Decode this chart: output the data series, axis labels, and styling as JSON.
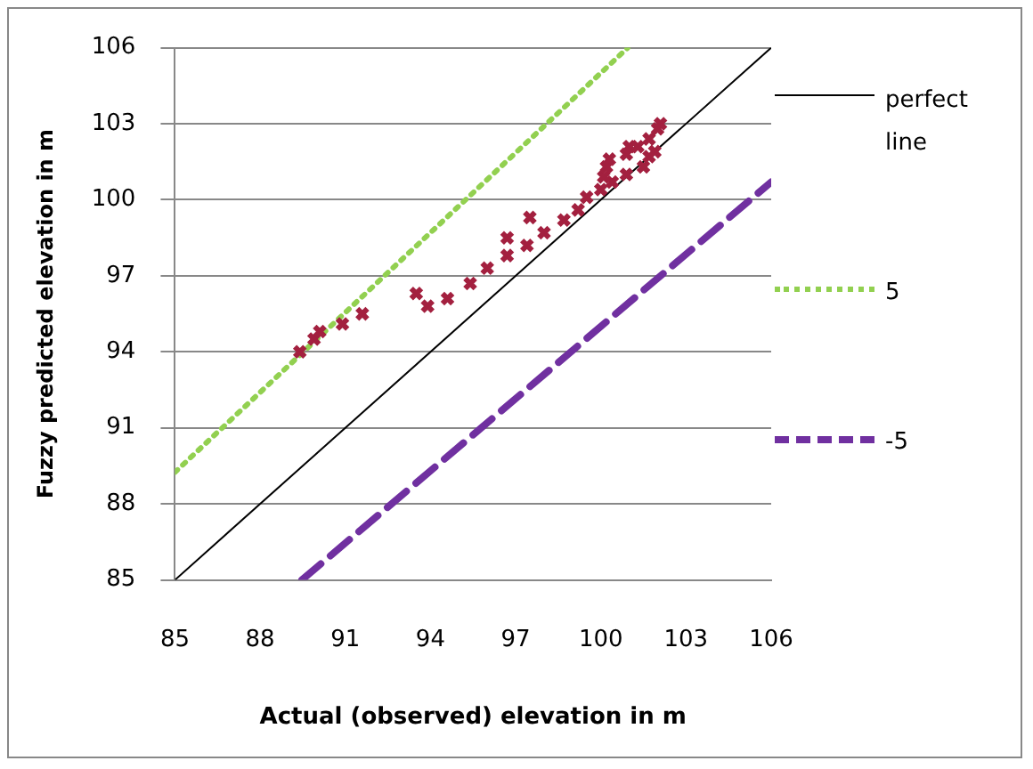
{
  "chart_data": {
    "type": "scatter",
    "xlabel": "Actual (observed) elevation in m",
    "ylabel": "Fuzzy predicted elevation in m",
    "xlim": [
      85,
      106
    ],
    "xticks": [
      85,
      88,
      91,
      94,
      97,
      100,
      103,
      106
    ],
    "ylim": [
      85,
      106
    ],
    "yticks": [
      85,
      88,
      91,
      94,
      97,
      100,
      103,
      106
    ],
    "grid": "y",
    "legend": "right",
    "series": [
      {
        "type": "scatter",
        "color": "#a3203f",
        "marker": "cross",
        "x": [
          89.4,
          89.9,
          90.1,
          90.9,
          91.6,
          93.5,
          93.9,
          94.6,
          95.4,
          96.0,
          96.7,
          96.7,
          97.4,
          97.5,
          98.0,
          98.7,
          99.2,
          99.5,
          100.0,
          100.4,
          100.1,
          100.2,
          100.3,
          100.9,
          101.5,
          100.9,
          101.0,
          101.3,
          101.7,
          101.9,
          101.7,
          102.0,
          102.1
        ],
        "values": [
          94.0,
          94.5,
          94.8,
          95.1,
          95.5,
          96.3,
          95.8,
          96.1,
          96.7,
          97.3,
          97.8,
          98.5,
          98.2,
          99.3,
          98.7,
          99.2,
          99.6,
          100.1,
          100.4,
          100.7,
          100.9,
          101.3,
          101.6,
          101.0,
          101.3,
          101.8,
          102.1,
          102.1,
          101.7,
          101.9,
          102.4,
          102.8,
          103.0
        ]
      },
      {
        "type": "line",
        "name": "perfect line",
        "color": "#000000",
        "line_style": "solid",
        "marker": "none",
        "x": [
          85,
          106
        ],
        "values": [
          85,
          106
        ]
      },
      {
        "type": "line",
        "name": "5",
        "color": "#92d050",
        "line_style": "dotted",
        "marker": "none",
        "x": [
          85,
          100.95
        ],
        "values": [
          89.25,
          106
        ]
      },
      {
        "type": "line",
        "name": "-5",
        "color": "#7030a0",
        "line_style": "dashed",
        "marker": "none",
        "x": [
          89.47,
          106
        ],
        "values": [
          85,
          100.7
        ]
      }
    ]
  }
}
